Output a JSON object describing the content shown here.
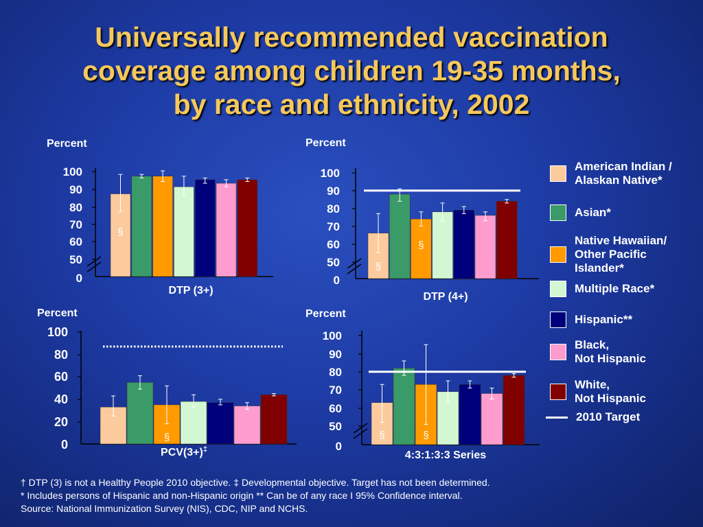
{
  "title": {
    "lines": [
      "Universally recommended vaccination",
      "coverage among children 19-35 months,",
      "by race and ethnicity, 2002"
    ]
  },
  "legend": {
    "items": [
      {
        "label": "American Indian /\nAlaskan Native*",
        "color": "#fccb9d"
      },
      {
        "label": "Asian*",
        "color": "#3a9a68"
      },
      {
        "label": "Native Hawaiian/\nOther Pacific\nIslander*",
        "color": "#ff9a00"
      },
      {
        "label": "Multiple Race*",
        "color": "#d3f7d3"
      },
      {
        "label": "Hispanic**",
        "color": "#00007a"
      },
      {
        "label": "Black,\nNot Hispanic",
        "color": "#ff9ccf"
      },
      {
        "label": "White,\nNot Hispanic",
        "color": "#800000"
      }
    ],
    "target_label": "2010 Target"
  },
  "chart_data": [
    {
      "type": "bar",
      "ylabel": "Percent",
      "xlabel": "DTP (3+)",
      "ylim": [
        50,
        100
      ],
      "yticks": [
        "100",
        "90",
        "80",
        "70",
        "60",
        "50",
        "0"
      ],
      "axis_break": true,
      "series": [
        {
          "name": "American Indian / Alaskan Native*",
          "value": 87,
          "ci": [
            77,
            98
          ],
          "flag": "§"
        },
        {
          "name": "Asian*",
          "value": 97,
          "ci": [
            96,
            98
          ]
        },
        {
          "name": "Native Hawaiian/ Other Pacific Islander*",
          "value": 97,
          "ci": [
            94,
            100
          ]
        },
        {
          "name": "Multiple Race*",
          "value": 91,
          "ci": [
            86,
            97
          ]
        },
        {
          "name": "Hispanic**",
          "value": 95,
          "ci": [
            93,
            96
          ]
        },
        {
          "name": "Black, Not Hispanic",
          "value": 93,
          "ci": [
            91,
            95
          ]
        },
        {
          "name": "White, Not Hispanic",
          "value": 95,
          "ci": [
            94,
            96
          ]
        }
      ],
      "target": null
    },
    {
      "type": "bar",
      "ylabel": "Percent",
      "xlabel": "DTP (4+)",
      "ylim": [
        50,
        100
      ],
      "yticks": [
        "100",
        "90",
        "80",
        "70",
        "60",
        "50",
        "0"
      ],
      "axis_break": true,
      "series": [
        {
          "name": "American Indian / Alaskan Native*",
          "value": 66,
          "ci": [
            55,
            77
          ],
          "flag": "§"
        },
        {
          "name": "Asian*",
          "value": 88,
          "ci": [
            84,
            91
          ]
        },
        {
          "name": "Native Hawaiian/ Other Pacific Islander*",
          "value": 74,
          "ci": [
            70,
            78
          ],
          "flag": "§"
        },
        {
          "name": "Multiple Race*",
          "value": 78,
          "ci": [
            73,
            83
          ]
        },
        {
          "name": "Hispanic**",
          "value": 79,
          "ci": [
            77,
            81
          ]
        },
        {
          "name": "Black, Not Hispanic",
          "value": 76,
          "ci": [
            73,
            78
          ]
        },
        {
          "name": "White, Not Hispanic",
          "value": 84,
          "ci": [
            83,
            85
          ]
        }
      ],
      "target": {
        "value": 90,
        "style": "solid"
      }
    },
    {
      "type": "bar",
      "ylabel": "Percent",
      "xlabel": "PCV(3+)",
      "xlabel_sup": "‡",
      "ylim": [
        0,
        100
      ],
      "yticks": [
        "100",
        "80",
        "60",
        "40",
        "20",
        "0"
      ],
      "axis_break": false,
      "series": [
        {
          "name": "American Indian / Alaskan Native*",
          "value": 33,
          "ci": [
            25,
            43
          ]
        },
        {
          "name": "Asian*",
          "value": 55,
          "ci": [
            49,
            61
          ]
        },
        {
          "name": "Native Hawaiian/ Other Pacific Islander*",
          "value": 35,
          "ci": [
            18,
            52
          ],
          "flag": "§"
        },
        {
          "name": "Multiple Race*",
          "value": 38,
          "ci": [
            33,
            44
          ]
        },
        {
          "name": "Hispanic**",
          "value": 37,
          "ci": [
            35,
            40
          ]
        },
        {
          "name": "Black, Not Hispanic",
          "value": 34,
          "ci": [
            31,
            37
          ]
        },
        {
          "name": "White, Not Hispanic",
          "value": 44,
          "ci": [
            43,
            45
          ]
        }
      ],
      "target": {
        "value": 90,
        "style": "dotted"
      }
    },
    {
      "type": "bar",
      "ylabel": "Percent",
      "xlabel": "4:3:1:3:3 Series",
      "ylim": [
        50,
        100
      ],
      "yticks": [
        "100",
        "90",
        "80",
        "70",
        "60",
        "50",
        "0"
      ],
      "axis_break": true,
      "series": [
        {
          "name": "American Indian / Alaskan Native*",
          "value": 63,
          "ci": [
            52,
            73
          ],
          "flag": "§"
        },
        {
          "name": "Asian*",
          "value": 82,
          "ci": [
            78,
            86
          ]
        },
        {
          "name": "Native Hawaiian/ Other Pacific Islander*",
          "value": 73,
          "ci": [
            51,
            95
          ],
          "flag": "§"
        },
        {
          "name": "Multiple Race*",
          "value": 69,
          "ci": [
            63,
            75
          ]
        },
        {
          "name": "Hispanic**",
          "value": 73,
          "ci": [
            71,
            75
          ]
        },
        {
          "name": "Black, Not Hispanic",
          "value": 68,
          "ci": [
            65,
            71
          ]
        },
        {
          "name": "White, Not Hispanic",
          "value": 78,
          "ci": [
            77,
            79
          ]
        }
      ],
      "target": {
        "value": 80,
        "style": "solid"
      }
    }
  ],
  "footnotes": [
    "† DTP (3) is not a Healthy People 2010 objective. ‡ Developmental objective.  Target has not been determined.",
    "* Includes persons of Hispanic and non-Hispanic origin  ** Can be of any race  I 95% Confidence interval.",
    "Source:  National Immunization Survey (NIS), CDC, NIP and NCHS."
  ]
}
